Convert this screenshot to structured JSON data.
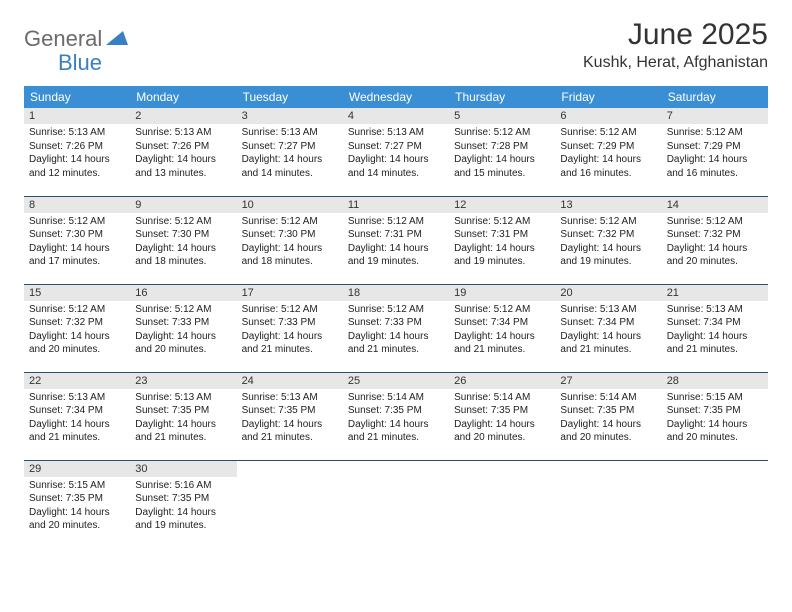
{
  "logo": {
    "general": "General",
    "blue": "Blue"
  },
  "title": "June 2025",
  "location": "Kushk, Herat, Afghanistan",
  "colors": {
    "header_bg": "#3a8fd4",
    "header_text": "#ffffff",
    "daynum_bg": "#e7e7e7",
    "border": "#2a4d6e",
    "logo_gray": "#6b6b6b",
    "logo_blue": "#3a7fc4",
    "page_bg": "#ffffff"
  },
  "weekdays": [
    "Sunday",
    "Monday",
    "Tuesday",
    "Wednesday",
    "Thursday",
    "Friday",
    "Saturday"
  ],
  "days": [
    {
      "n": "1",
      "sunrise": "Sunrise: 5:13 AM",
      "sunset": "Sunset: 7:26 PM",
      "d1": "Daylight: 14 hours",
      "d2": "and 12 minutes."
    },
    {
      "n": "2",
      "sunrise": "Sunrise: 5:13 AM",
      "sunset": "Sunset: 7:26 PM",
      "d1": "Daylight: 14 hours",
      "d2": "and 13 minutes."
    },
    {
      "n": "3",
      "sunrise": "Sunrise: 5:13 AM",
      "sunset": "Sunset: 7:27 PM",
      "d1": "Daylight: 14 hours",
      "d2": "and 14 minutes."
    },
    {
      "n": "4",
      "sunrise": "Sunrise: 5:13 AM",
      "sunset": "Sunset: 7:27 PM",
      "d1": "Daylight: 14 hours",
      "d2": "and 14 minutes."
    },
    {
      "n": "5",
      "sunrise": "Sunrise: 5:12 AM",
      "sunset": "Sunset: 7:28 PM",
      "d1": "Daylight: 14 hours",
      "d2": "and 15 minutes."
    },
    {
      "n": "6",
      "sunrise": "Sunrise: 5:12 AM",
      "sunset": "Sunset: 7:29 PM",
      "d1": "Daylight: 14 hours",
      "d2": "and 16 minutes."
    },
    {
      "n": "7",
      "sunrise": "Sunrise: 5:12 AM",
      "sunset": "Sunset: 7:29 PM",
      "d1": "Daylight: 14 hours",
      "d2": "and 16 minutes."
    },
    {
      "n": "8",
      "sunrise": "Sunrise: 5:12 AM",
      "sunset": "Sunset: 7:30 PM",
      "d1": "Daylight: 14 hours",
      "d2": "and 17 minutes."
    },
    {
      "n": "9",
      "sunrise": "Sunrise: 5:12 AM",
      "sunset": "Sunset: 7:30 PM",
      "d1": "Daylight: 14 hours",
      "d2": "and 18 minutes."
    },
    {
      "n": "10",
      "sunrise": "Sunrise: 5:12 AM",
      "sunset": "Sunset: 7:30 PM",
      "d1": "Daylight: 14 hours",
      "d2": "and 18 minutes."
    },
    {
      "n": "11",
      "sunrise": "Sunrise: 5:12 AM",
      "sunset": "Sunset: 7:31 PM",
      "d1": "Daylight: 14 hours",
      "d2": "and 19 minutes."
    },
    {
      "n": "12",
      "sunrise": "Sunrise: 5:12 AM",
      "sunset": "Sunset: 7:31 PM",
      "d1": "Daylight: 14 hours",
      "d2": "and 19 minutes."
    },
    {
      "n": "13",
      "sunrise": "Sunrise: 5:12 AM",
      "sunset": "Sunset: 7:32 PM",
      "d1": "Daylight: 14 hours",
      "d2": "and 19 minutes."
    },
    {
      "n": "14",
      "sunrise": "Sunrise: 5:12 AM",
      "sunset": "Sunset: 7:32 PM",
      "d1": "Daylight: 14 hours",
      "d2": "and 20 minutes."
    },
    {
      "n": "15",
      "sunrise": "Sunrise: 5:12 AM",
      "sunset": "Sunset: 7:32 PM",
      "d1": "Daylight: 14 hours",
      "d2": "and 20 minutes."
    },
    {
      "n": "16",
      "sunrise": "Sunrise: 5:12 AM",
      "sunset": "Sunset: 7:33 PM",
      "d1": "Daylight: 14 hours",
      "d2": "and 20 minutes."
    },
    {
      "n": "17",
      "sunrise": "Sunrise: 5:12 AM",
      "sunset": "Sunset: 7:33 PM",
      "d1": "Daylight: 14 hours",
      "d2": "and 21 minutes."
    },
    {
      "n": "18",
      "sunrise": "Sunrise: 5:12 AM",
      "sunset": "Sunset: 7:33 PM",
      "d1": "Daylight: 14 hours",
      "d2": "and 21 minutes."
    },
    {
      "n": "19",
      "sunrise": "Sunrise: 5:12 AM",
      "sunset": "Sunset: 7:34 PM",
      "d1": "Daylight: 14 hours",
      "d2": "and 21 minutes."
    },
    {
      "n": "20",
      "sunrise": "Sunrise: 5:13 AM",
      "sunset": "Sunset: 7:34 PM",
      "d1": "Daylight: 14 hours",
      "d2": "and 21 minutes."
    },
    {
      "n": "21",
      "sunrise": "Sunrise: 5:13 AM",
      "sunset": "Sunset: 7:34 PM",
      "d1": "Daylight: 14 hours",
      "d2": "and 21 minutes."
    },
    {
      "n": "22",
      "sunrise": "Sunrise: 5:13 AM",
      "sunset": "Sunset: 7:34 PM",
      "d1": "Daylight: 14 hours",
      "d2": "and 21 minutes."
    },
    {
      "n": "23",
      "sunrise": "Sunrise: 5:13 AM",
      "sunset": "Sunset: 7:35 PM",
      "d1": "Daylight: 14 hours",
      "d2": "and 21 minutes."
    },
    {
      "n": "24",
      "sunrise": "Sunrise: 5:13 AM",
      "sunset": "Sunset: 7:35 PM",
      "d1": "Daylight: 14 hours",
      "d2": "and 21 minutes."
    },
    {
      "n": "25",
      "sunrise": "Sunrise: 5:14 AM",
      "sunset": "Sunset: 7:35 PM",
      "d1": "Daylight: 14 hours",
      "d2": "and 21 minutes."
    },
    {
      "n": "26",
      "sunrise": "Sunrise: 5:14 AM",
      "sunset": "Sunset: 7:35 PM",
      "d1": "Daylight: 14 hours",
      "d2": "and 20 minutes."
    },
    {
      "n": "27",
      "sunrise": "Sunrise: 5:14 AM",
      "sunset": "Sunset: 7:35 PM",
      "d1": "Daylight: 14 hours",
      "d2": "and 20 minutes."
    },
    {
      "n": "28",
      "sunrise": "Sunrise: 5:15 AM",
      "sunset": "Sunset: 7:35 PM",
      "d1": "Daylight: 14 hours",
      "d2": "and 20 minutes."
    },
    {
      "n": "29",
      "sunrise": "Sunrise: 5:15 AM",
      "sunset": "Sunset: 7:35 PM",
      "d1": "Daylight: 14 hours",
      "d2": "and 20 minutes."
    },
    {
      "n": "30",
      "sunrise": "Sunrise: 5:16 AM",
      "sunset": "Sunset: 7:35 PM",
      "d1": "Daylight: 14 hours",
      "d2": "and 19 minutes."
    }
  ]
}
